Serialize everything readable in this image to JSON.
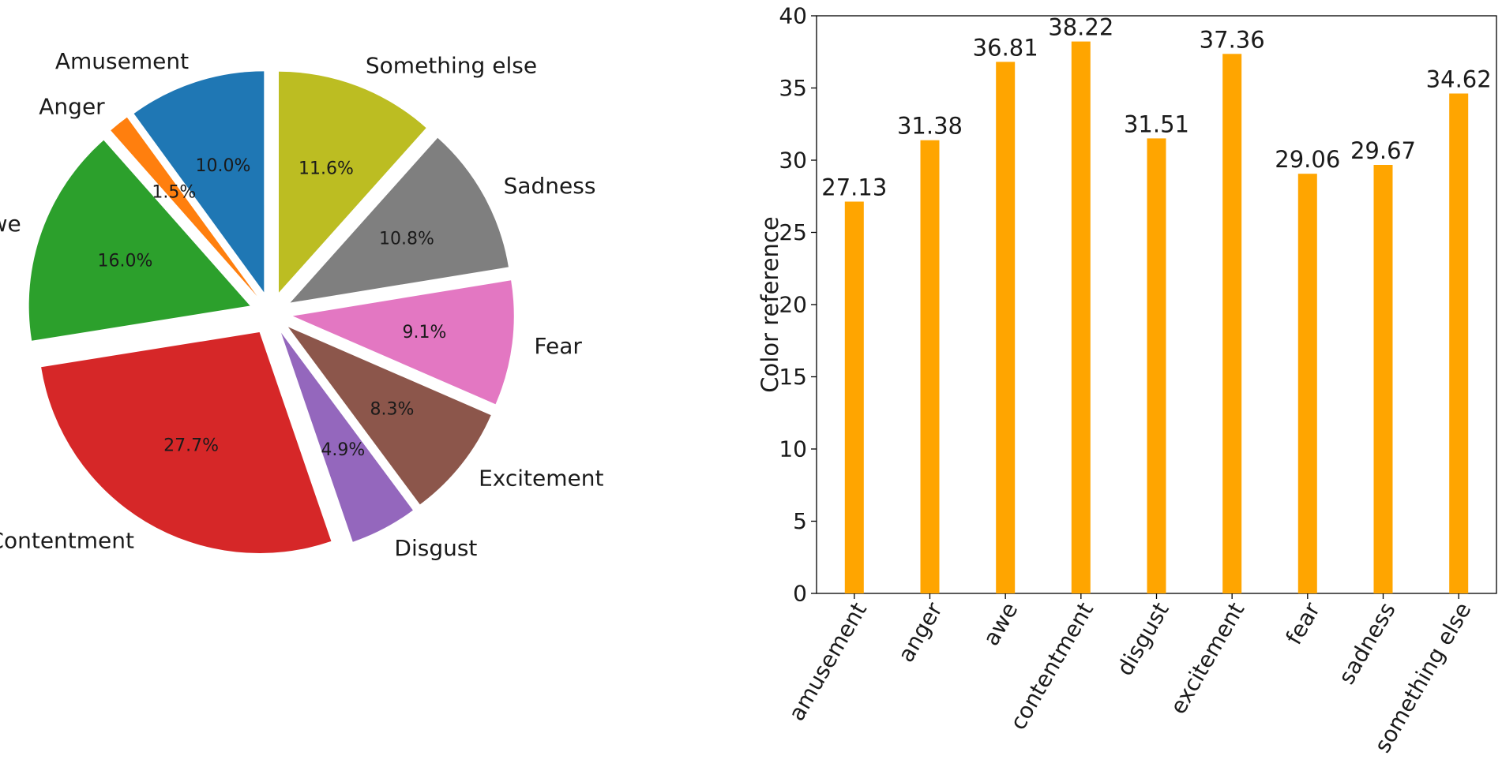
{
  "chart_data": [
    {
      "type": "pie",
      "start_angle_deg": 90,
      "direction": "counterclockwise",
      "colors": [
        "#1f77b4",
        "#ff7f0e",
        "#2ca02c",
        "#d62728",
        "#9467bd",
        "#8c564b",
        "#e377c2",
        "#7f7f7f",
        "#bcbd22"
      ],
      "slices": [
        {
          "label": "Amusement",
          "value": 10.0,
          "pct_label": "10.0%"
        },
        {
          "label": "Anger",
          "value": 1.5,
          "pct_label": "1.5%"
        },
        {
          "label": "Awe",
          "value": 16.0,
          "pct_label": "16.0%"
        },
        {
          "label": "Contentment",
          "value": 27.7,
          "pct_label": "27.7%"
        },
        {
          "label": "Disgust",
          "value": 4.9,
          "pct_label": "4.9%"
        },
        {
          "label": "Excitement",
          "value": 8.3,
          "pct_label": "8.3%"
        },
        {
          "label": "Fear",
          "value": 9.1,
          "pct_label": "9.1%"
        },
        {
          "label": "Sadness",
          "value": 10.8,
          "pct_label": "10.8%"
        },
        {
          "label": "Something else",
          "value": 11.6,
          "pct_label": "11.6%"
        }
      ]
    },
    {
      "type": "bar",
      "categories": [
        "amusement",
        "anger",
        "awe",
        "contentment",
        "disgust",
        "excitement",
        "fear",
        "sadness",
        "something else"
      ],
      "values": [
        27.13,
        31.38,
        36.81,
        38.22,
        31.51,
        37.36,
        29.06,
        29.67,
        34.62
      ],
      "value_labels": [
        "27.13",
        "31.38",
        "36.81",
        "38.22",
        "31.51",
        "37.36",
        "29.06",
        "29.67",
        "34.62"
      ],
      "bar_color": "#ffa500",
      "xlabel": "",
      "ylabel": "Color reference",
      "ylim": [
        0,
        40
      ],
      "yticks": [
        "0",
        "5",
        "10",
        "15",
        "20",
        "25",
        "30",
        "35",
        "40"
      ],
      "xtick_rotation_deg": 60,
      "grid": false
    }
  ]
}
